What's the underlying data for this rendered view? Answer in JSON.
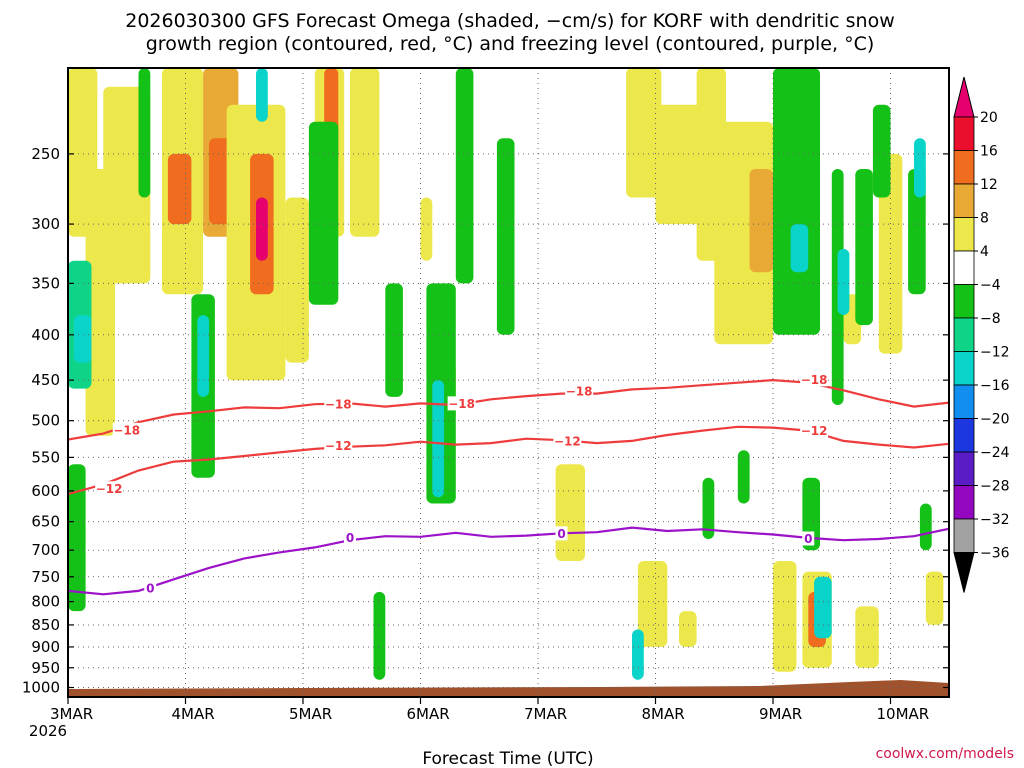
{
  "chart_data": {
    "type": "heatmap",
    "title": [
      "2026030300 GFS Forecast Omega (shaded, −cm/s) for KORF with dendritic snow",
      "growth region (contoured, red, °C) and freezing level (contoured, purple, °C)"
    ],
    "xlabel": "Forecast Time (UTC)",
    "ylabel": "",
    "x_ticks": [
      "3MAR",
      "4MAR",
      "5MAR",
      "6MAR",
      "7MAR",
      "8MAR",
      "9MAR",
      "10MAR"
    ],
    "x_sub_label": "2026",
    "x_range_days": [
      0,
      7.5
    ],
    "y_ticks": [
      250,
      300,
      350,
      400,
      450,
      500,
      550,
      600,
      650,
      700,
      750,
      800,
      850,
      900,
      950,
      1000
    ],
    "y_range_hpa": [
      200,
      1025
    ],
    "colorbar": {
      "labels": [
        "20",
        "16",
        "12",
        "8",
        "4",
        "−4",
        "−8",
        "−12",
        "−16",
        "−20",
        "−24",
        "−28",
        "−32",
        "−36"
      ],
      "colors": [
        "#ea0f2c",
        "#f06c1e",
        "#e8a935",
        "#ece84c",
        "#ffffff",
        "#14c116",
        "#0fd488",
        "#0ad3c9",
        "#118ef0",
        "#1c36e0",
        "#5a1cc4",
        "#9407c0",
        "#a2a2a2"
      ],
      "top_arrow_color": "#e6006e",
      "bottom_arrow_color": "#000000"
    },
    "contours": [
      {
        "name": "-18C isotherm",
        "label": "−18",
        "color": "#ee3c3c",
        "points": [
          [
            0,
            525
          ],
          [
            0.3,
            517
          ],
          [
            0.6,
            502
          ],
          [
            0.9,
            492
          ],
          [
            1.2,
            488
          ],
          [
            1.5,
            483
          ],
          [
            1.8,
            484
          ],
          [
            2.1,
            479
          ],
          [
            2.4,
            478
          ],
          [
            2.7,
            482
          ],
          [
            3.0,
            478
          ],
          [
            3.3,
            480
          ],
          [
            3.6,
            473
          ],
          [
            3.9,
            469
          ],
          [
            4.2,
            466
          ],
          [
            4.5,
            466
          ],
          [
            4.8,
            461
          ],
          [
            5.1,
            459
          ],
          [
            5.4,
            456
          ],
          [
            5.7,
            453
          ],
          [
            6.0,
            450
          ],
          [
            6.3,
            453
          ],
          [
            6.6,
            462
          ],
          [
            6.9,
            473
          ],
          [
            7.2,
            482
          ],
          [
            7.5,
            477
          ]
        ],
        "label_at": [
          [
            0.5,
            512
          ],
          [
            2.3,
            479
          ],
          [
            3.35,
            478
          ],
          [
            4.35,
            463
          ],
          [
            6.35,
            449
          ]
        ]
      },
      {
        "name": "-12C isotherm",
        "label": "−12",
        "color": "#ee3c3c",
        "points": [
          [
            0,
            605
          ],
          [
            0.3,
            590
          ],
          [
            0.6,
            569
          ],
          [
            0.9,
            556
          ],
          [
            1.2,
            553
          ],
          [
            1.5,
            548
          ],
          [
            1.8,
            543
          ],
          [
            2.1,
            538
          ],
          [
            2.4,
            535
          ],
          [
            2.7,
            533
          ],
          [
            3.0,
            528
          ],
          [
            3.3,
            532
          ],
          [
            3.6,
            530
          ],
          [
            3.9,
            524
          ],
          [
            4.2,
            526
          ],
          [
            4.5,
            530
          ],
          [
            4.8,
            527
          ],
          [
            5.1,
            519
          ],
          [
            5.4,
            513
          ],
          [
            5.7,
            508
          ],
          [
            6.0,
            509
          ],
          [
            6.3,
            513
          ],
          [
            6.6,
            527
          ],
          [
            6.9,
            532
          ],
          [
            7.2,
            536
          ],
          [
            7.5,
            531
          ]
        ],
        "label_at": [
          [
            0.35,
            596
          ],
          [
            2.3,
            533
          ],
          [
            4.25,
            527
          ],
          [
            6.35,
            513
          ]
        ]
      },
      {
        "name": "0C freezing level",
        "label": "0",
        "color": "#9b12c8",
        "points": [
          [
            0,
            778
          ],
          [
            0.3,
            785
          ],
          [
            0.6,
            778
          ],
          [
            0.9,
            755
          ],
          [
            1.2,
            733
          ],
          [
            1.5,
            715
          ],
          [
            1.8,
            704
          ],
          [
            2.1,
            695
          ],
          [
            2.4,
            682
          ],
          [
            2.7,
            675
          ],
          [
            3.0,
            676
          ],
          [
            3.3,
            669
          ],
          [
            3.6,
            676
          ],
          [
            3.9,
            674
          ],
          [
            4.2,
            670
          ],
          [
            4.5,
            668
          ],
          [
            4.8,
            660
          ],
          [
            5.1,
            666
          ],
          [
            5.4,
            663
          ],
          [
            5.7,
            668
          ],
          [
            6.0,
            672
          ],
          [
            6.3,
            678
          ],
          [
            6.6,
            682
          ],
          [
            6.9,
            680
          ],
          [
            7.2,
            675
          ],
          [
            7.5,
            662
          ]
        ],
        "label_at": [
          [
            0.7,
            772
          ],
          [
            2.4,
            677
          ],
          [
            4.2,
            670
          ],
          [
            6.3,
            679
          ]
        ]
      }
    ],
    "shaded_regions": [
      {
        "x": [
          0.0,
          0.25
        ],
        "p": [
          200,
          310
        ],
        "value": 6
      },
      {
        "x": [
          0.15,
          0.4
        ],
        "p": [
          260,
          520
        ],
        "value": 5
      },
      {
        "x": [
          0.3,
          0.7
        ],
        "p": [
          210,
          350
        ],
        "value": 6
      },
      {
        "x": [
          0.8,
          1.15
        ],
        "p": [
          200,
          360
        ],
        "value": 7
      },
      {
        "x": [
          0.85,
          1.05
        ],
        "p": [
          250,
          300
        ],
        "value": 12
      },
      {
        "x": [
          1.15,
          1.45
        ],
        "p": [
          200,
          310
        ],
        "value": 9
      },
      {
        "x": [
          1.2,
          1.4
        ],
        "p": [
          240,
          300
        ],
        "value": 13
      },
      {
        "x": [
          1.35,
          1.85
        ],
        "p": [
          220,
          450
        ],
        "value": 6
      },
      {
        "x": [
          1.55,
          1.75
        ],
        "p": [
          250,
          360
        ],
        "value": 15
      },
      {
        "x": [
          1.6,
          1.7
        ],
        "p": [
          280,
          330
        ],
        "value": 22
      },
      {
        "x": [
          1.85,
          2.05
        ],
        "p": [
          280,
          430
        ],
        "value": 6
      },
      {
        "x": [
          2.1,
          2.35
        ],
        "p": [
          200,
          310
        ],
        "value": 6
      },
      {
        "x": [
          2.18,
          2.3
        ],
        "p": [
          200,
          260
        ],
        "value": 12
      },
      {
        "x": [
          2.4,
          2.65
        ],
        "p": [
          200,
          310
        ],
        "value": 6
      },
      {
        "x": [
          3.0,
          3.1
        ],
        "p": [
          280,
          330
        ],
        "value": 6
      },
      {
        "x": [
          3.2,
          3.3
        ],
        "p": [
          430,
          500
        ],
        "value": 6
      },
      {
        "x": [
          4.15,
          4.4
        ],
        "p": [
          560,
          720
        ],
        "value": 5
      },
      {
        "x": [
          4.75,
          5.05
        ],
        "p": [
          200,
          280
        ],
        "value": 6
      },
      {
        "x": [
          4.85,
          5.1
        ],
        "p": [
          720,
          900
        ],
        "value": 5
      },
      {
        "x": [
          5.0,
          5.4
        ],
        "p": [
          220,
          300
        ],
        "value": 7
      },
      {
        "x": [
          5.2,
          5.35
        ],
        "p": [
          820,
          900
        ],
        "value": 6
      },
      {
        "x": [
          5.35,
          5.6
        ],
        "p": [
          200,
          330
        ],
        "value": 6
      },
      {
        "x": [
          5.5,
          6.0
        ],
        "p": [
          230,
          410
        ],
        "value": 6
      },
      {
        "x": [
          5.8,
          6.0
        ],
        "p": [
          260,
          340
        ],
        "value": 10
      },
      {
        "x": [
          6.0,
          6.2
        ],
        "p": [
          720,
          960
        ],
        "value": 6
      },
      {
        "x": [
          6.25,
          6.5
        ],
        "p": [
          740,
          950
        ],
        "value": 7
      },
      {
        "x": [
          6.3,
          6.45
        ],
        "p": [
          780,
          900
        ],
        "value": 13
      },
      {
        "x": [
          6.6,
          6.75
        ],
        "p": [
          360,
          410
        ],
        "value": 6
      },
      {
        "x": [
          6.7,
          6.9
        ],
        "p": [
          810,
          950
        ],
        "value": 6
      },
      {
        "x": [
          6.95,
          7.05
        ],
        "p": [
          280,
          330
        ],
        "value": 10
      },
      {
        "x": [
          6.9,
          7.1
        ],
        "p": [
          250,
          420
        ],
        "value": 6
      },
      {
        "x": [
          7.3,
          7.45
        ],
        "p": [
          740,
          850
        ],
        "value": 6
      },
      {
        "x": [
          0.0,
          0.2
        ],
        "p": [
          330,
          460
        ],
        "value": -8
      },
      {
        "x": [
          0.0,
          0.12
        ],
        "p": [
          580,
          700
        ],
        "value": -12
      },
      {
        "x": [
          0.0,
          0.15
        ],
        "p": [
          560,
          820
        ],
        "value": -7
      },
      {
        "x": [
          0.05,
          0.2
        ],
        "p": [
          380,
          430
        ],
        "value": -13
      },
      {
        "x": [
          0.6,
          0.7
        ],
        "p": [
          200,
          280
        ],
        "value": -7
      },
      {
        "x": [
          1.6,
          1.7
        ],
        "p": [
          200,
          230
        ],
        "value": -12
      },
      {
        "x": [
          2.05,
          2.3
        ],
        "p": [
          230,
          370
        ],
        "value": -7
      },
      {
        "x": [
          1.05,
          1.25
        ],
        "p": [
          360,
          580
        ],
        "value": -7
      },
      {
        "x": [
          1.1,
          1.2
        ],
        "p": [
          380,
          470
        ],
        "value": -14
      },
      {
        "x": [
          2.6,
          2.7
        ],
        "p": [
          780,
          980
        ],
        "value": -7
      },
      {
        "x": [
          2.7,
          2.85
        ],
        "p": [
          350,
          470
        ],
        "value": -7
      },
      {
        "x": [
          3.05,
          3.3
        ],
        "p": [
          350,
          620
        ],
        "value": -7
      },
      {
        "x": [
          3.1,
          3.2
        ],
        "p": [
          450,
          610
        ],
        "value": -13
      },
      {
        "x": [
          3.3,
          3.45
        ],
        "p": [
          200,
          350
        ],
        "value": -7
      },
      {
        "x": [
          3.65,
          3.8
        ],
        "p": [
          240,
          400
        ],
        "value": -7
      },
      {
        "x": [
          4.8,
          4.9
        ],
        "p": [
          860,
          980
        ],
        "value": -14
      },
      {
        "x": [
          5.4,
          5.5
        ],
        "p": [
          580,
          680
        ],
        "value": -7
      },
      {
        "x": [
          5.7,
          5.8
        ],
        "p": [
          540,
          620
        ],
        "value": -7
      },
      {
        "x": [
          6.0,
          6.4
        ],
        "p": [
          200,
          400
        ],
        "value": -7
      },
      {
        "x": [
          6.15,
          6.3
        ],
        "p": [
          300,
          340
        ],
        "value": -13
      },
      {
        "x": [
          6.25,
          6.4
        ],
        "p": [
          580,
          700
        ],
        "value": -7
      },
      {
        "x": [
          6.35,
          6.5
        ],
        "p": [
          750,
          880
        ],
        "value": -14
      },
      {
        "x": [
          6.5,
          6.6
        ],
        "p": [
          260,
          480
        ],
        "value": -7
      },
      {
        "x": [
          6.55,
          6.65
        ],
        "p": [
          320,
          380
        ],
        "value": -13
      },
      {
        "x": [
          6.7,
          6.85
        ],
        "p": [
          260,
          390
        ],
        "value": -7
      },
      {
        "x": [
          6.85,
          7.0
        ],
        "p": [
          220,
          280
        ],
        "value": -7
      },
      {
        "x": [
          7.15,
          7.3
        ],
        "p": [
          260,
          360
        ],
        "value": -7
      },
      {
        "x": [
          7.2,
          7.3
        ],
        "p": [
          240,
          280
        ],
        "value": -13
      },
      {
        "x": [
          7.25,
          7.35
        ],
        "p": [
          620,
          700
        ],
        "value": -7
      }
    ]
  },
  "credit": "coolwx.com/models"
}
